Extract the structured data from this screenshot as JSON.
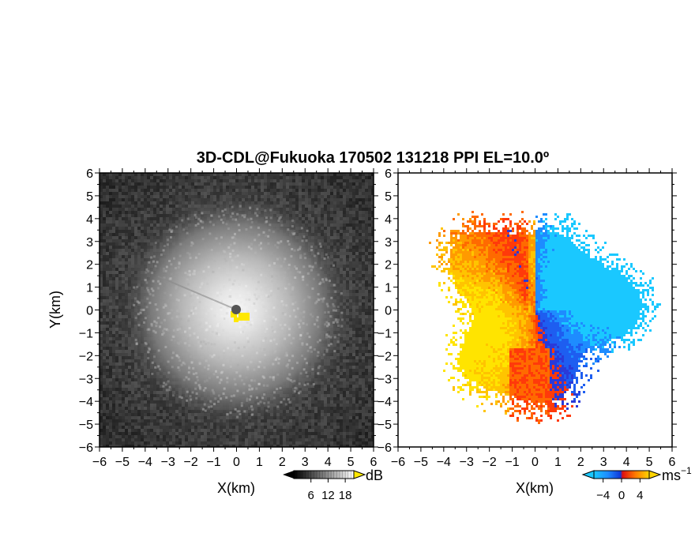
{
  "chart_data": {
    "title": "3D-CDL@Fukuoka 170502 131218 PPI EL=10.0º",
    "panels": [
      {
        "type": "heatmap",
        "xlabel": "X(km)",
        "ylabel": "Y(km)",
        "xlim": [
          -6,
          6
        ],
        "ylim": [
          -6,
          6
        ],
        "x_ticks": [
          "−6",
          "−5",
          "−4",
          "−3",
          "−2",
          "−1",
          "0",
          "1",
          "2",
          "3",
          "4",
          "5",
          "6"
        ],
        "y_ticks": [
          "6",
          "5",
          "4",
          "3",
          "2",
          "1",
          "0",
          "−1",
          "−2",
          "−3",
          "−4",
          "−5",
          "−6"
        ],
        "colormap": "grayscale",
        "colorbar": {
          "unit": "dB",
          "ticks": [
            6,
            12,
            18
          ],
          "tick_labels": [
            "6",
            "12",
            "18"
          ],
          "range": [
            0,
            21
          ]
        }
      },
      {
        "type": "heatmap",
        "xlabel": "X(km)",
        "ylabel": "",
        "xlim": [
          -6,
          6
        ],
        "ylim": [
          -6,
          6
        ],
        "x_ticks": [
          "−6",
          "−5",
          "−4",
          "−3",
          "−2",
          "−1",
          "0",
          "1",
          "2",
          "3",
          "4",
          "5",
          "6"
        ],
        "y_ticks": [
          "6",
          "5",
          "4",
          "3",
          "2",
          "1",
          "0",
          "−1",
          "−2",
          "−3",
          "−4",
          "−5",
          "−6"
        ],
        "colormap": "blue-to-yellow diverging",
        "colorbar": {
          "unit": "ms",
          "unit_superscript": "−1",
          "ticks": [
            -4,
            0,
            4
          ],
          "tick_labels": [
            "−4",
            "0",
            "4"
          ],
          "range": [
            -6,
            6
          ]
        }
      }
    ],
    "colors": {
      "negative": "#1e78f0",
      "positive": "#ff4a0a",
      "neutral": "#ffd400"
    }
  }
}
